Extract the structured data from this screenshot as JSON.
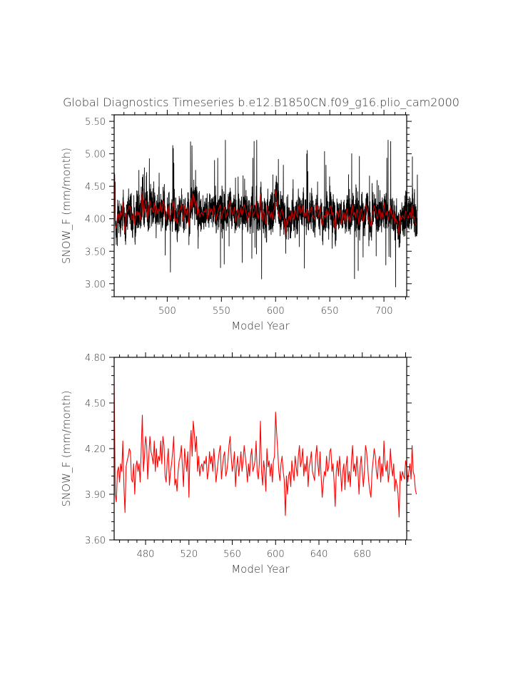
{
  "figure_title": "Global Diagnostics Timeseries b.e12.B1850CN.f09_g16.plio_cam2000",
  "chart_data": [
    {
      "type": "line",
      "title": "",
      "xlabel": "Model Year",
      "ylabel": "SNOW_F (mm/month)",
      "xlim": [
        451,
        721
      ],
      "ylim": [
        2.8,
        5.6
      ],
      "xticks": [
        500,
        550,
        600,
        650,
        700
      ],
      "xtick_labels": [
        "500",
        "550",
        "600",
        "650",
        "700"
      ],
      "yticks": [
        3.0,
        3.5,
        4.0,
        4.5,
        5.0,
        5.5
      ],
      "ytick_labels": [
        "3.00",
        "3.50",
        "4.00",
        "4.50",
        "5.00",
        "5.50"
      ],
      "grid": false,
      "series": [
        {
          "name": "",
          "color": "#000000",
          "sampling": "monthly",
          "summary": {
            "mean": 4.07,
            "min": 2.95,
            "max": 5.21
          },
          "annual_mean_source": "series_2"
        },
        {
          "name": "",
          "color": "#cc0000",
          "sampling": "annual_mean"
        }
      ]
    },
    {
      "type": "line",
      "title": "",
      "xlabel": "Model Year",
      "ylabel": "SNOW_F (mm/month)",
      "xlim": [
        451,
        721
      ],
      "ylim": [
        3.6,
        4.8
      ],
      "xticks": [
        480,
        520,
        560,
        600,
        640,
        680
      ],
      "xtick_labels": [
        "480",
        "520",
        "560",
        "600",
        "640",
        "680"
      ],
      "yticks": [
        3.6,
        3.9,
        4.2,
        4.5,
        4.8
      ],
      "ytick_labels": [
        "3.60",
        "3.90",
        "4.20",
        "4.50",
        "4.80"
      ],
      "grid": false,
      "series": [
        {
          "name": "",
          "color": "#ff0000",
          "x_start": 451,
          "x_step": 1,
          "values": [
            4.65,
            3.9,
            3.85,
            4.05,
            4.08,
            3.98,
            4.1,
            4.05,
            4.25,
            3.95,
            3.78,
            4.08,
            4.12,
            4.15,
            4.2,
            4.18,
            4.0,
            3.98,
            4.1,
            3.9,
            4.08,
            4.12,
            4.05,
            4.1,
            3.98,
            4.2,
            4.42,
            4.05,
            4.15,
            4.28,
            4.22,
            4.0,
            4.15,
            4.28,
            4.18,
            4.15,
            4.1,
            4.25,
            4.05,
            4.2,
            4.08,
            4.15,
            4.12,
            4.25,
            4.1,
            4.28,
            4.22,
            4.02,
            3.98,
            4.12,
            4.2,
            3.96,
            4.05,
            4.1,
            4.18,
            4.28,
            3.96,
            4.0,
            3.92,
            4.05,
            4.12,
            4.15,
            4.22,
            4.08,
            3.95,
            4.2,
            4.12,
            4.05,
            4.18,
            3.88,
            4.2,
            4.32,
            4.15,
            4.38,
            4.3,
            4.18,
            4.28,
            4.05,
            4.15,
            4.02,
            4.08,
            4.1,
            4.05,
            4.12,
            4.1,
            4.15,
            4.0,
            4.05,
            4.18,
            4.1,
            4.15,
            4.05,
            4.2,
            4.1,
            3.98,
            4.05,
            4.12,
            4.18,
            4.22,
            4.0,
            4.08,
            4.15,
            4.18,
            4.02,
            4.05,
            4.12,
            4.22,
            4.28,
            4.15,
            4.05,
            4.1,
            4.18,
            3.95,
            4.08,
            4.15,
            4.02,
            4.1,
            4.18,
            4.05,
            4.12,
            4.22,
            4.15,
            4.08,
            3.98,
            4.1,
            4.02,
            4.15,
            4.2,
            4.05,
            4.08,
            4.12,
            4.25,
            4.05,
            4.0,
            4.1,
            4.38,
            4.05,
            3.96,
            4.12,
            4.05,
            3.92,
            4.2,
            4.08,
            4.12,
            4.02,
            4.1,
            3.98,
            4.12,
            4.15,
            4.44,
            4.3,
            4.18,
            4.05,
            3.99,
            4.1,
            4.15,
            4.05,
            3.99,
            3.76,
            4.02,
            3.9,
            4.02,
            4.05,
            3.95,
            4.12,
            4.05,
            3.99,
            4.15,
            4.08,
            4.02,
            4.15,
            4.22,
            4.08,
            4.12,
            4.2,
            4.02,
            4.1,
            4.05,
            4.15,
            3.95,
            4.08,
            4.12,
            4.18,
            4.05,
            4.02,
            3.99,
            4.15,
            4.22,
            4.1,
            4.02,
            4.18,
            4.02,
            3.88,
            3.97,
            4.05,
            4.02,
            4.15,
            4.05,
            4.08,
            4.18,
            4.2,
            4.05,
            4.1,
            3.98,
            3.82,
            4.05,
            4.12,
            4.02,
            4.15,
            4.05,
            3.92,
            4.05,
            4.1,
            3.93,
            4.08,
            4.15,
            3.98,
            4.05,
            3.95,
            4.12,
            4.22,
            4.05,
            4.1,
            4.02,
            4.15,
            4.05,
            3.9,
            4.08,
            4.15,
            4.05,
            3.95,
            4.05,
            4.22,
            4.18,
            4.08,
            3.98,
            3.92,
            3.88,
            4.05,
            4.12,
            4.2,
            4.15,
            4.05,
            4.0,
            4.12,
            4.15,
            3.98,
            4.1,
            4.02,
            4.25,
            4.1,
            4.05,
            4.12,
            3.98,
            4.05,
            4.2,
            4.08,
            4.02,
            4.1,
            3.92,
            4.0,
            3.96,
            3.9,
            3.75,
            4.05,
            3.99,
            4.05,
            4.02,
            4.0,
            4.12,
            4.08,
            3.98,
            4.05,
            4.1,
            4.0,
            4.22,
            4.05,
            4.02,
            3.93,
            3.9
          ]
        }
      ]
    }
  ]
}
